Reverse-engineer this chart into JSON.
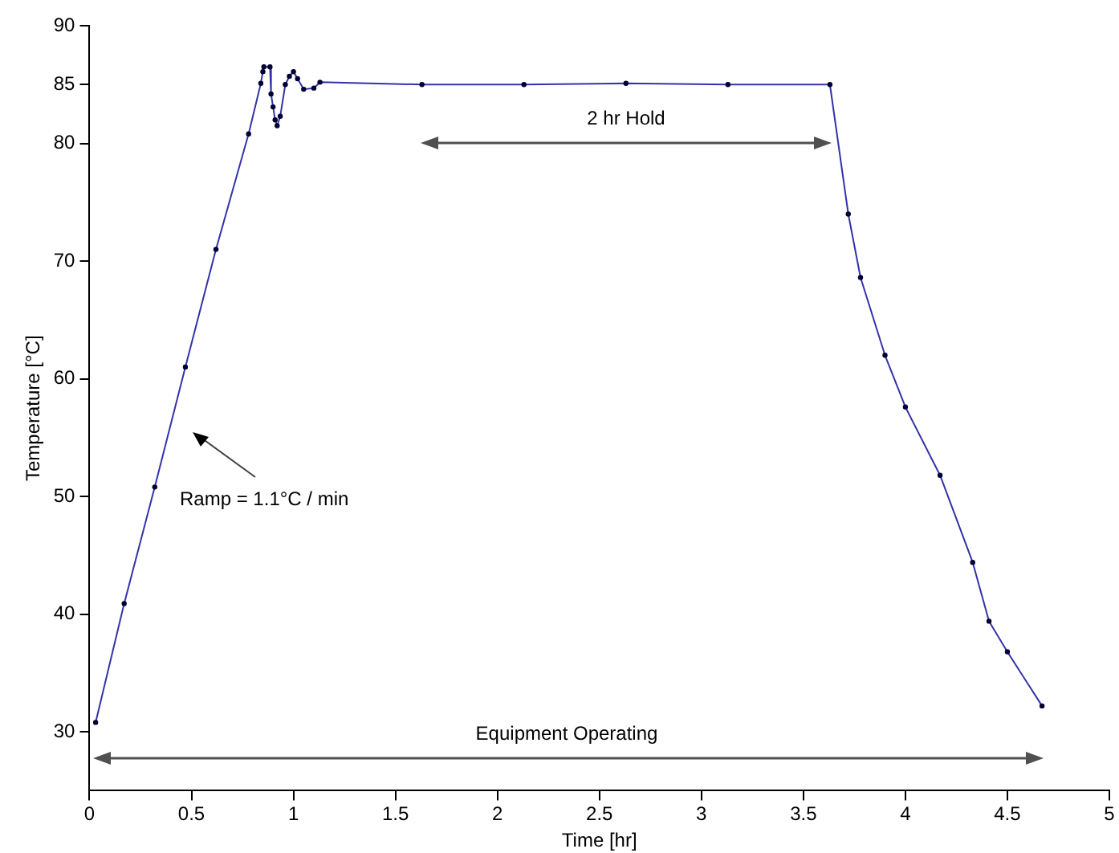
{
  "chart_data": {
    "type": "line",
    "xlabel": "Time [hr]",
    "ylabel": "Temperature [°C]",
    "x": [
      0.03,
      0.17,
      0.32,
      0.47,
      0.62,
      0.78,
      0.84,
      0.85,
      0.855,
      0.885,
      0.89,
      0.9,
      0.91,
      0.92,
      0.935,
      0.96,
      0.98,
      1.0,
      1.02,
      1.05,
      1.1,
      1.13,
      1.63,
      2.13,
      2.63,
      3.13,
      3.63,
      3.72,
      3.78,
      3.9,
      4.0,
      4.17,
      4.33,
      4.41,
      4.5,
      4.67
    ],
    "series": [
      {
        "color": "#3333aa",
        "values": [
          30.8,
          40.9,
          50.8,
          61.0,
          71.0,
          80.8,
          85.1,
          86.1,
          86.5,
          86.5,
          84.2,
          83.1,
          82.0,
          81.5,
          82.3,
          85.0,
          85.7,
          86.1,
          85.5,
          84.6,
          84.7,
          85.2,
          85.0,
          85.0,
          85.1,
          85.0,
          85.0,
          74.0,
          68.6,
          62.0,
          57.6,
          51.8,
          44.4,
          39.4,
          36.8,
          32.2
        ]
      }
    ],
    "xlim": [
      0,
      5
    ],
    "xticks": [
      0,
      0.5,
      1,
      1.5,
      2,
      2.5,
      3,
      3.5,
      4,
      4.5,
      5
    ],
    "ylim": [
      25,
      90
    ],
    "yticks": [
      30,
      40,
      50,
      60,
      70,
      80,
      85,
      90
    ],
    "grid": false,
    "legend": false,
    "marker": "circle",
    "line_style": "solid",
    "annotations": [
      "2 hr Hold",
      "Ramp = 1.1°C / min",
      "Equipment Operating"
    ]
  }
}
